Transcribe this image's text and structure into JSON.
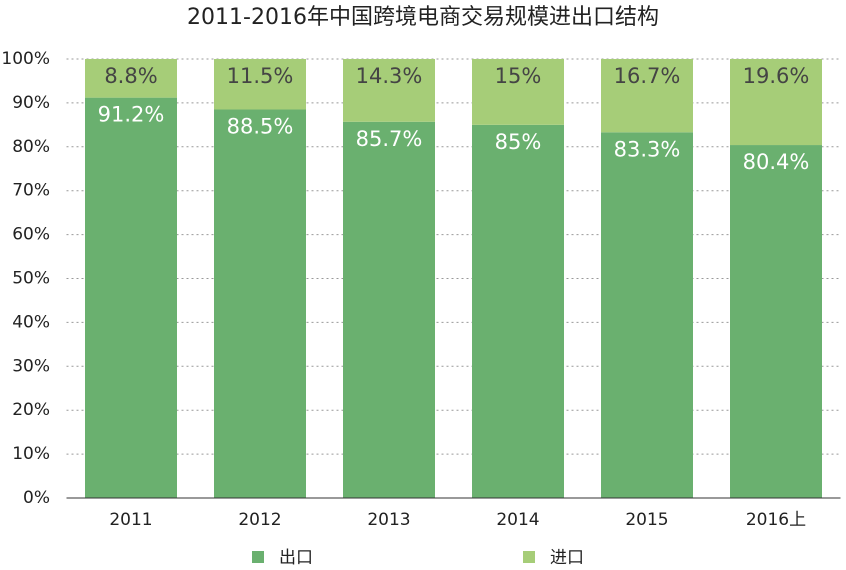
{
  "chart_data": {
    "type": "stacked_bar",
    "title": "2011-2016年中国跨境电商交易规模进出口结构",
    "categories": [
      "2011",
      "2012",
      "2013",
      "2014",
      "2015",
      "2016上"
    ],
    "series": [
      {
        "name": "出口",
        "color": "#6ab06f",
        "values": [
          91.2,
          88.5,
          85.7,
          85,
          83.3,
          80.4
        ],
        "value_labels": [
          "91.2%",
          "88.5%",
          "85.7%",
          "85%",
          "83.3%",
          "80.4%"
        ]
      },
      {
        "name": "进口",
        "color": "#a6cd78",
        "values": [
          8.8,
          11.5,
          14.3,
          15,
          16.7,
          19.6
        ],
        "value_labels": [
          "8.8%",
          "11.5%",
          "14.3%",
          "15%",
          "16.7%",
          "19.6%"
        ]
      }
    ],
    "ylim": [
      0,
      100
    ],
    "yticks": [
      {
        "value": 0,
        "label": "0%"
      },
      {
        "value": 10,
        "label": "10%"
      },
      {
        "value": 20,
        "label": "20%"
      },
      {
        "value": 30,
        "label": "30%"
      },
      {
        "value": 40,
        "label": "40%"
      },
      {
        "value": 50,
        "label": "50%"
      },
      {
        "value": 60,
        "label": "60%"
      },
      {
        "value": 70,
        "label": "70%"
      },
      {
        "value": 80,
        "label": "80%"
      },
      {
        "value": 90,
        "label": "90%"
      },
      {
        "value": 100,
        "label": "100%"
      }
    ],
    "grid": true
  }
}
